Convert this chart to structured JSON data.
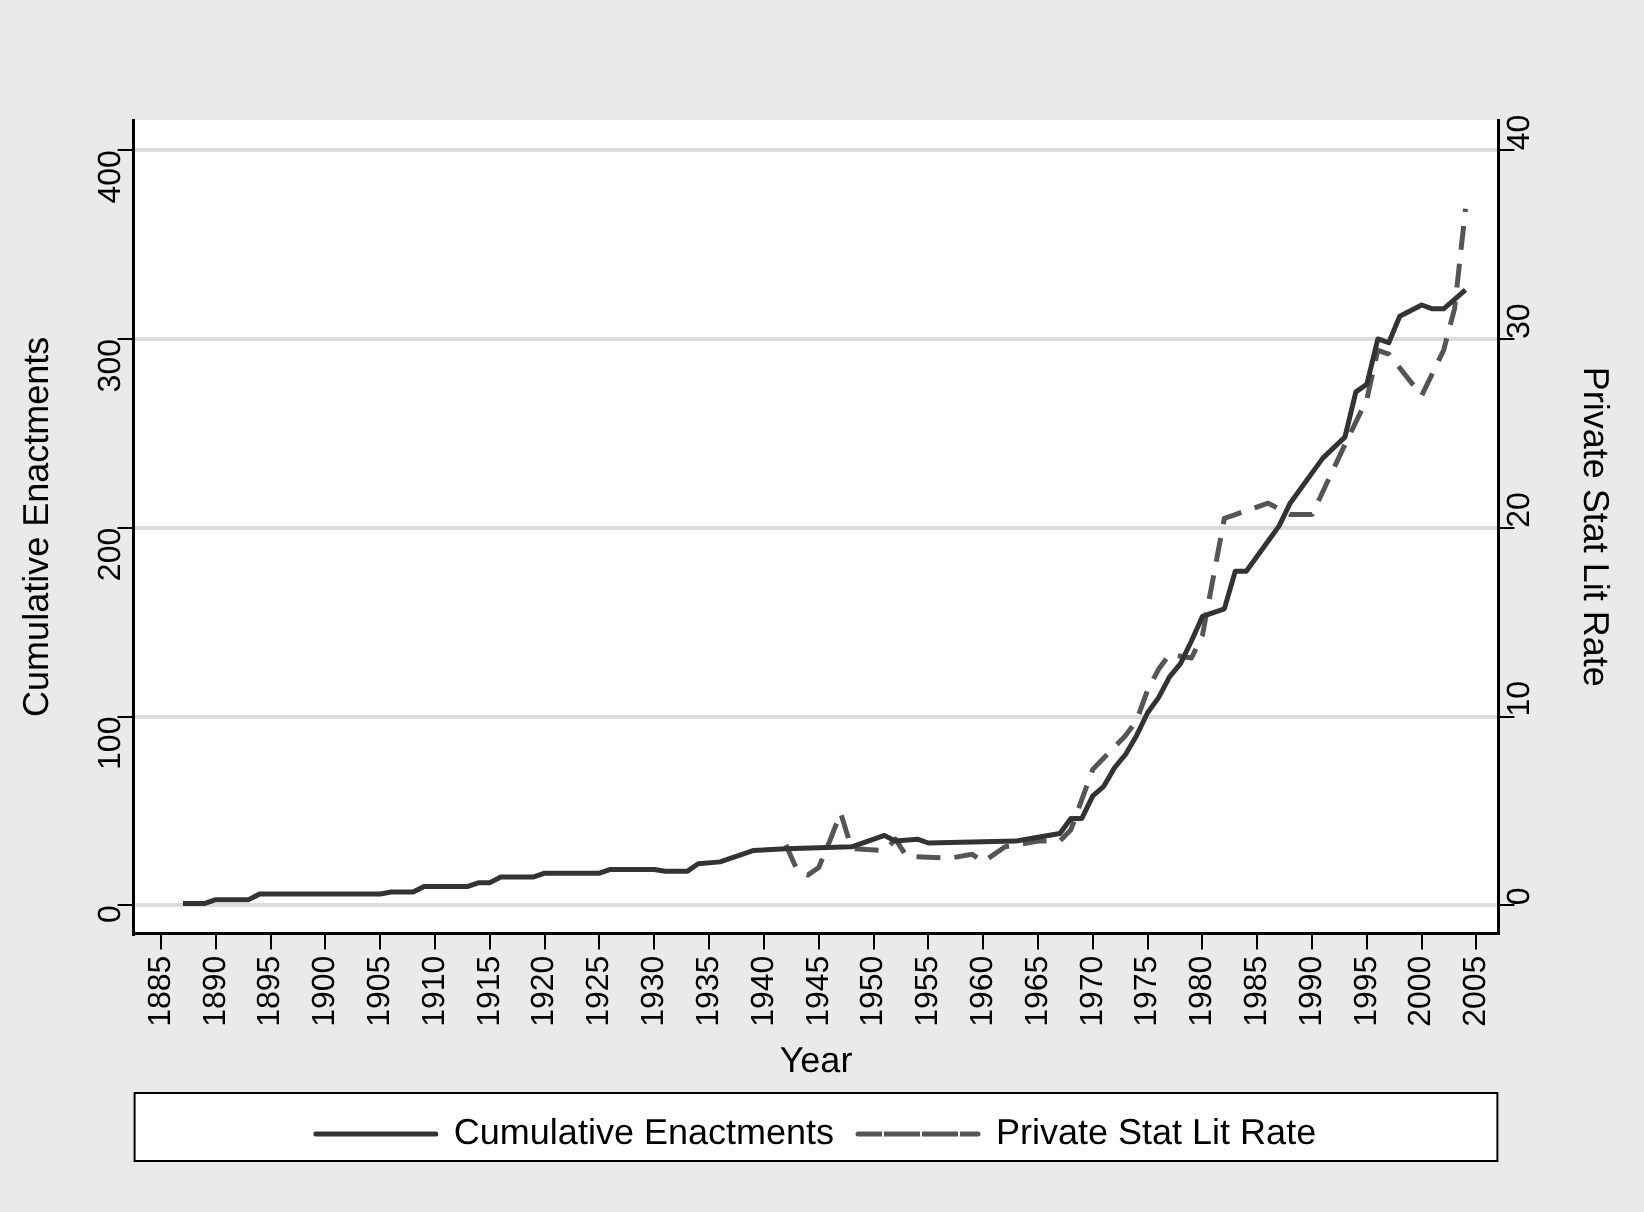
{
  "chart_data": {
    "type": "line",
    "xlabel": "Year",
    "ylabel": "Cumulative Enactments",
    "y2label": "Private Stat Lit Rate",
    "xlim": [
      1882.5,
      2007
    ],
    "xticks": [
      1885,
      1890,
      1895,
      1900,
      1905,
      1910,
      1915,
      1920,
      1925,
      1930,
      1935,
      1940,
      1945,
      1950,
      1955,
      1960,
      1965,
      1970,
      1975,
      1980,
      1985,
      1990,
      1995,
      2000,
      2005
    ],
    "ylim": [
      -15,
      416
    ],
    "yticks": [
      0,
      100,
      200,
      300,
      400
    ],
    "y2lim": [
      -1.5,
      41.6
    ],
    "y2ticks": [
      0,
      10,
      20,
      30,
      40
    ],
    "grid": "y",
    "legend": "bottom",
    "marker": "none",
    "series": [
      {
        "name": "Cumulative Enactments",
        "color": "#333333",
        "line_style": "solid",
        "x": [
          1887,
          1889,
          1890,
          1893,
          1894,
          1905,
          1906,
          1908,
          1909,
          1913,
          1914,
          1915,
          1916,
          1919,
          1920,
          1925,
          1926,
          1930,
          1931,
          1933,
          1934,
          1936,
          1939,
          1942,
          1948,
          1951,
          1952,
          1954,
          1955,
          1963,
          1965,
          1967,
          1968,
          1969,
          1970,
          1971,
          1972,
          1973,
          1974,
          1975,
          1976,
          1977,
          1978,
          1979,
          1980,
          1982,
          1983,
          1984,
          1986,
          1987,
          1988,
          1991,
          1993,
          1994,
          1995,
          1996,
          1997,
          1998,
          2000,
          2001,
          2002,
          2004
        ],
        "values": [
          1,
          1,
          3,
          3,
          6,
          6,
          7,
          7,
          10,
          10,
          12,
          12,
          15,
          15,
          17,
          17,
          19,
          19,
          18,
          18,
          22,
          23,
          29,
          30,
          31,
          37,
          34,
          35,
          33,
          34,
          36,
          38,
          46,
          46,
          58,
          63,
          73,
          80,
          90,
          102,
          110,
          121,
          128,
          140,
          153,
          157,
          177,
          177,
          193,
          201,
          213,
          237,
          248,
          272,
          276,
          300,
          298,
          312,
          318,
          316,
          316,
          326
        ]
      },
      {
        "name": "Private Stat Lit Rate",
        "color": "#555555",
        "line_style": "dashed",
        "axis": "y2",
        "x": [
          1942,
          1943,
          1944,
          1945,
          1946,
          1947,
          1948,
          1951,
          1952,
          1953,
          1957,
          1959,
          1960,
          1962,
          1965,
          1967,
          1968,
          1970,
          1973,
          1974,
          1975,
          1976,
          1977,
          1979,
          1980,
          1982,
          1983,
          1986,
          1988,
          1990,
          1993,
          1995,
          1996,
          1997,
          2000,
          2002,
          2003,
          2004
        ],
        "values": [
          3.2,
          1.9,
          1.6,
          2.0,
          3.4,
          4.9,
          3.0,
          2.9,
          3.5,
          2.6,
          2.5,
          2.7,
          2.3,
          3.1,
          3.4,
          3.4,
          4.0,
          7.2,
          9.0,
          9.8,
          11.4,
          12.5,
          13.3,
          13.1,
          14.3,
          20.5,
          20.7,
          21.3,
          20.7,
          20.7,
          24.4,
          26.8,
          29.4,
          29.2,
          27.0,
          29.4,
          31.6,
          36.9
        ]
      }
    ]
  }
}
